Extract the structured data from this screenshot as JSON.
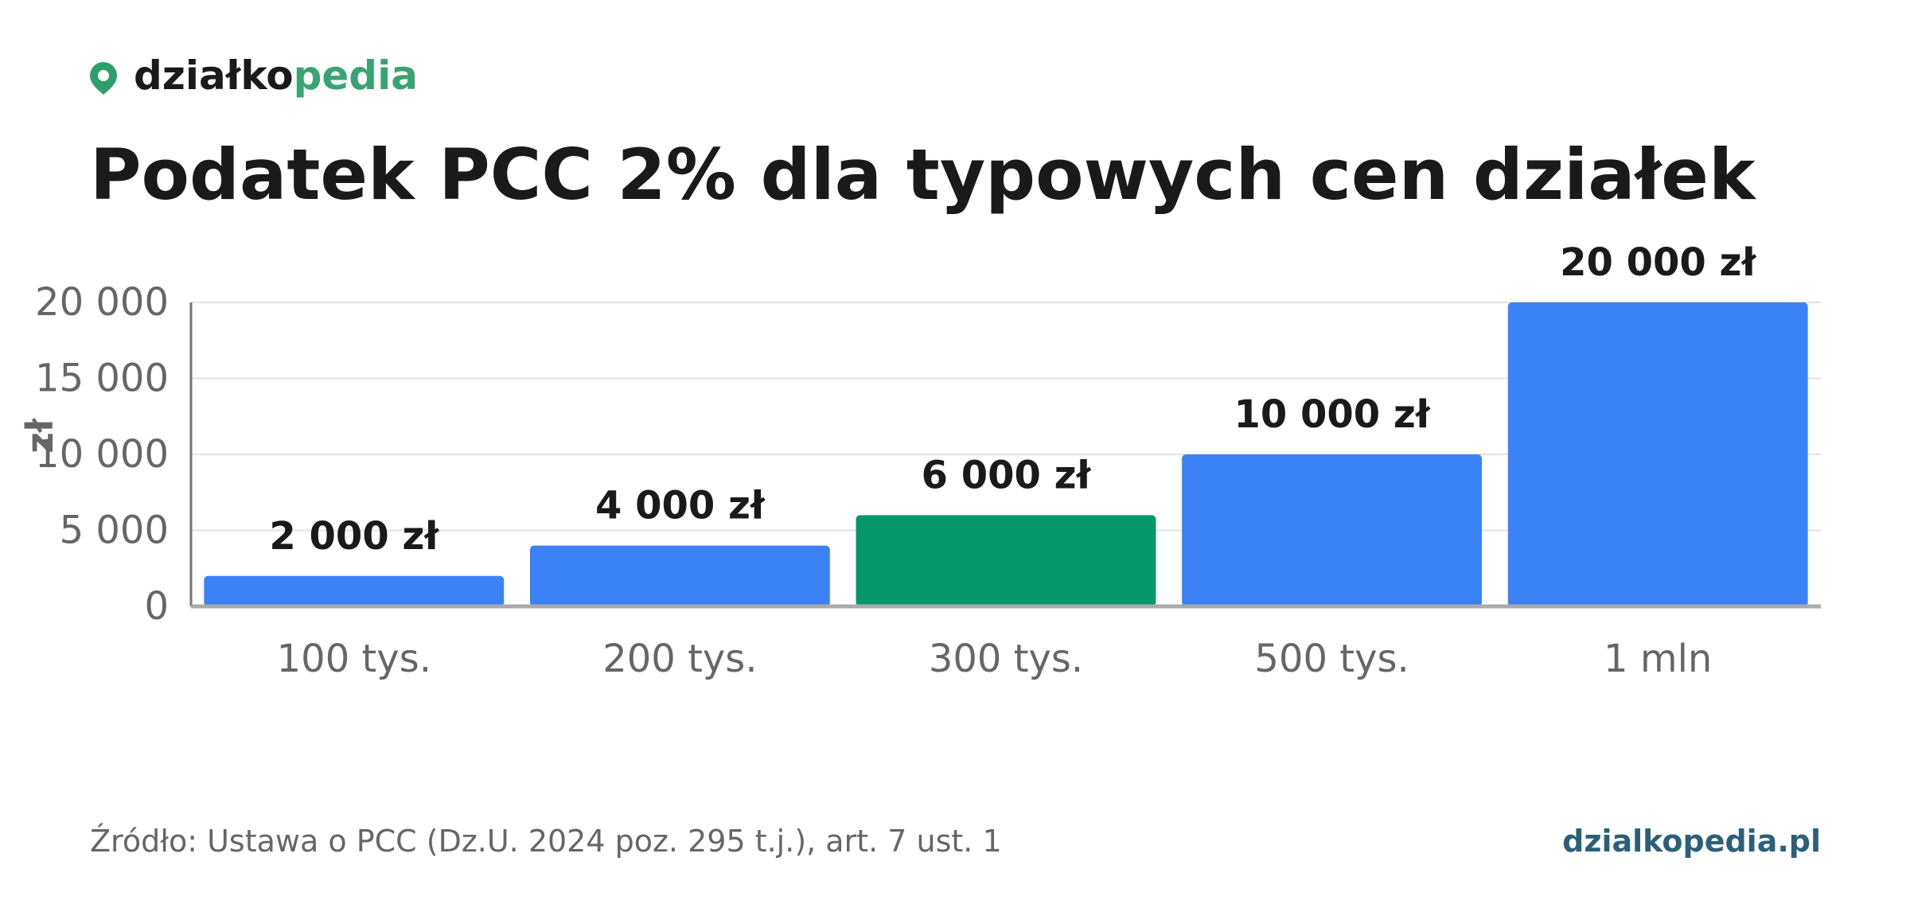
{
  "brand": {
    "name_a": "działko",
    "name_b": "pedia"
  },
  "chart_data": {
    "type": "bar",
    "title": "Podatek PCC 2% dla typowych cen działek",
    "y_label": "zł",
    "categories": [
      "100 tys.",
      "200 tys.",
      "300 tys.",
      "500 tys.",
      "1 mln"
    ],
    "values": [
      2000,
      4000,
      6000,
      10000,
      20000
    ],
    "value_labels": [
      "2 000 zł",
      "4 000 zł",
      "6 000 zł",
      "10 000 zł",
      "20 000 zł"
    ],
    "colors": [
      "#3b82f6",
      "#3b82f6",
      "#059669",
      "#3b82f6",
      "#3b82f6"
    ],
    "ylim": [
      0,
      20000
    ],
    "yticks": [
      0,
      {
        "value": 5000,
        "label": "5 000"
      },
      {
        "value": 10000,
        "label": "10 000"
      },
      {
        "value": 15000,
        "label": "15 000"
      },
      {
        "value": 20000,
        "label": "20 000"
      }
    ],
    "grid": true
  },
  "footer": {
    "source": "Źródło: Ustawa o PCC (Dz.U. 2024 poz. 295 t.j.), art. 7 ust. 1",
    "site": "dzialkopedia.pl"
  }
}
